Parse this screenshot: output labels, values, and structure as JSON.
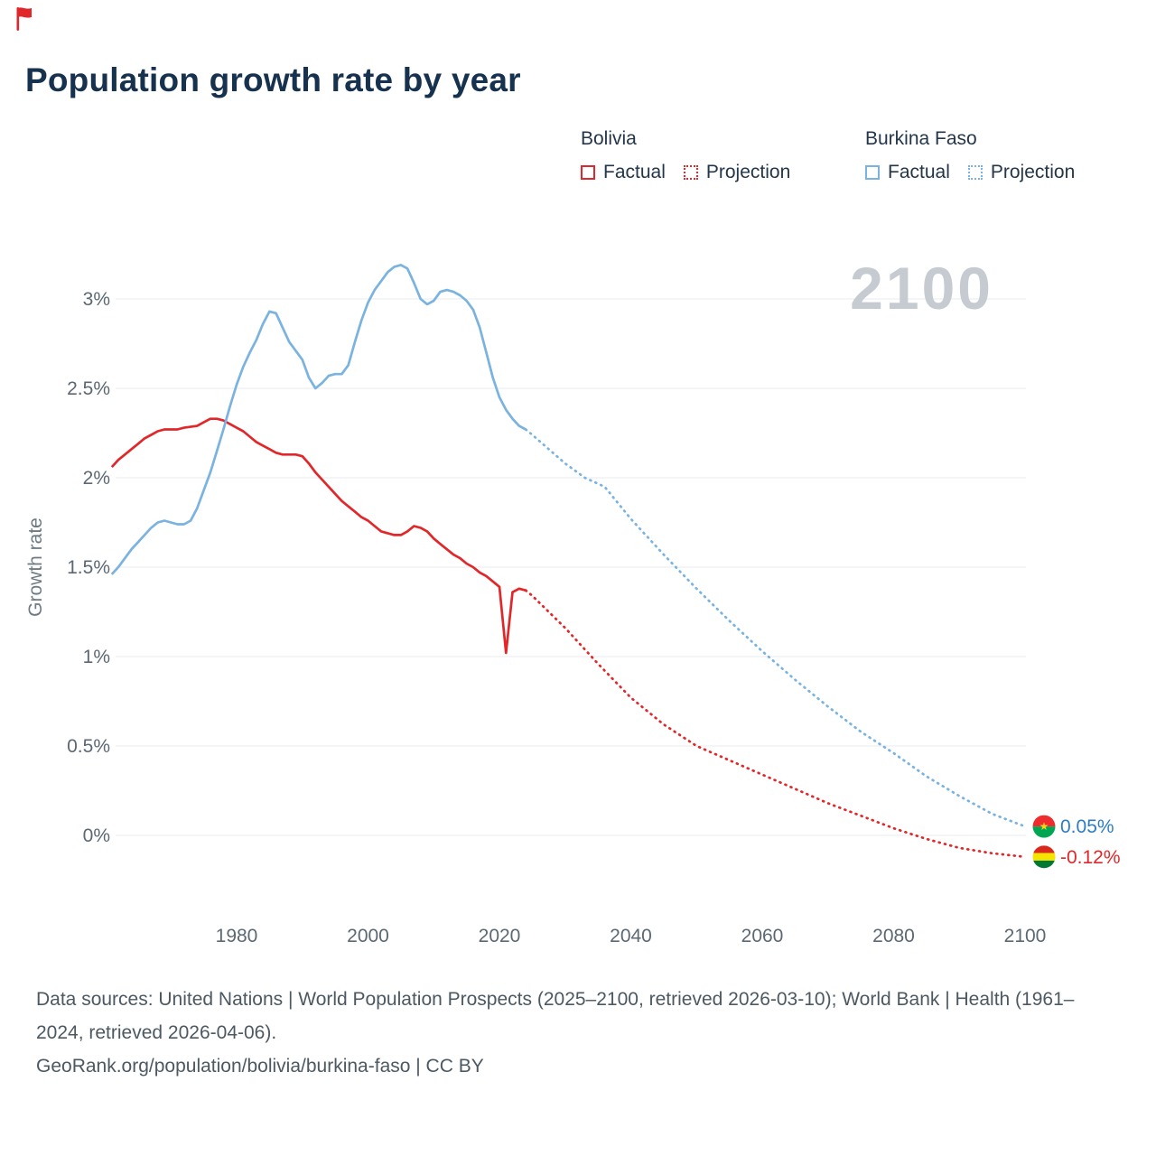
{
  "page": {
    "title": "Population growth rate by year"
  },
  "legend": {
    "groups": [
      {
        "country": "Bolivia",
        "color": "#e12729",
        "items": [
          {
            "label": "Factual",
            "style": "solid",
            "color": "#e12729"
          },
          {
            "label": "Projection",
            "style": "dotted",
            "color": "#e12729"
          }
        ]
      },
      {
        "country": "Burkina Faso",
        "color": "#7ab3e0",
        "items": [
          {
            "label": "Factual",
            "style": "solid",
            "color": "#7ab3e0"
          },
          {
            "label": "Projection",
            "style": "dotted",
            "color": "#7ab3e0"
          }
        ]
      }
    ]
  },
  "chart_data": {
    "type": "line",
    "title": "Population growth rate by year",
    "xlabel": "",
    "ylabel": "Growth rate",
    "watermark": "2100",
    "grid": true,
    "xlim": [
      1961,
      2113
    ],
    "ylim": [
      -0.25,
      3.3
    ],
    "x_ticks": [
      1980,
      2000,
      2020,
      2040,
      2060,
      2080,
      2100
    ],
    "y_ticks": [
      "0%",
      "0.5%",
      "1%",
      "1.5%",
      "2%",
      "2.5%",
      "3%"
    ],
    "y_tick_values": [
      0,
      0.5,
      1,
      1.5,
      2,
      2.5,
      3
    ],
    "series": [
      {
        "id": "bolivia-factual",
        "name": "Bolivia Factual",
        "color": "#e12729",
        "line": "solid",
        "points": [
          [
            1961,
            2.06
          ],
          [
            1962,
            2.1
          ],
          [
            1963,
            2.13
          ],
          [
            1964,
            2.16
          ],
          [
            1965,
            2.19
          ],
          [
            1966,
            2.22
          ],
          [
            1967,
            2.24
          ],
          [
            1968,
            2.26
          ],
          [
            1969,
            2.27
          ],
          [
            1970,
            2.27
          ],
          [
            1971,
            2.27
          ],
          [
            1972,
            2.28
          ],
          [
            1974,
            2.29
          ],
          [
            1975,
            2.31
          ],
          [
            1976,
            2.33
          ],
          [
            1977,
            2.33
          ],
          [
            1978,
            2.32
          ],
          [
            1979,
            2.3
          ],
          [
            1980,
            2.28
          ],
          [
            1981,
            2.26
          ],
          [
            1982,
            2.23
          ],
          [
            1983,
            2.2
          ],
          [
            1984,
            2.18
          ],
          [
            1985,
            2.16
          ],
          [
            1986,
            2.14
          ],
          [
            1987,
            2.13
          ],
          [
            1988,
            2.13
          ],
          [
            1989,
            2.13
          ],
          [
            1990,
            2.12
          ],
          [
            1991,
            2.08
          ],
          [
            1992,
            2.03
          ],
          [
            1993,
            1.99
          ],
          [
            1994,
            1.95
          ],
          [
            1995,
            1.91
          ],
          [
            1996,
            1.87
          ],
          [
            1997,
            1.84
          ],
          [
            1998,
            1.81
          ],
          [
            1999,
            1.78
          ],
          [
            2000,
            1.76
          ],
          [
            2001,
            1.73
          ],
          [
            2002,
            1.7
          ],
          [
            2003,
            1.69
          ],
          [
            2004,
            1.68
          ],
          [
            2005,
            1.68
          ],
          [
            2006,
            1.7
          ],
          [
            2007,
            1.73
          ],
          [
            2008,
            1.72
          ],
          [
            2009,
            1.7
          ],
          [
            2010,
            1.66
          ],
          [
            2011,
            1.63
          ],
          [
            2012,
            1.6
          ],
          [
            2013,
            1.57
          ],
          [
            2014,
            1.55
          ],
          [
            2015,
            1.52
          ],
          [
            2016,
            1.5
          ],
          [
            2017,
            1.47
          ],
          [
            2018,
            1.45
          ],
          [
            2019,
            1.42
          ],
          [
            2020,
            1.39
          ],
          [
            2021,
            1.02
          ],
          [
            2022,
            1.36
          ],
          [
            2023,
            1.38
          ],
          [
            2024,
            1.37
          ]
        ]
      },
      {
        "id": "bolivia-projection",
        "name": "Bolivia Projection",
        "color": "#e12729",
        "line": "dotted",
        "points": [
          [
            2024,
            1.37
          ],
          [
            2025,
            1.34
          ],
          [
            2030,
            1.16
          ],
          [
            2035,
            0.96
          ],
          [
            2040,
            0.77
          ],
          [
            2045,
            0.62
          ],
          [
            2050,
            0.5
          ],
          [
            2055,
            0.42
          ],
          [
            2060,
            0.34
          ],
          [
            2065,
            0.26
          ],
          [
            2070,
            0.18
          ],
          [
            2075,
            0.11
          ],
          [
            2080,
            0.04
          ],
          [
            2085,
            -0.02
          ],
          [
            2090,
            -0.07
          ],
          [
            2095,
            -0.1
          ],
          [
            2100,
            -0.12
          ]
        ]
      },
      {
        "id": "burkina-faso-factual",
        "name": "Burkina Faso Factual",
        "color": "#7ab3e0",
        "line": "solid",
        "points": [
          [
            1961,
            1.46
          ],
          [
            1962,
            1.5
          ],
          [
            1963,
            1.55
          ],
          [
            1964,
            1.6
          ],
          [
            1965,
            1.64
          ],
          [
            1966,
            1.68
          ],
          [
            1967,
            1.72
          ],
          [
            1968,
            1.75
          ],
          [
            1969,
            1.76
          ],
          [
            1970,
            1.75
          ],
          [
            1971,
            1.74
          ],
          [
            1972,
            1.74
          ],
          [
            1973,
            1.76
          ],
          [
            1974,
            1.83
          ],
          [
            1975,
            1.93
          ],
          [
            1976,
            2.03
          ],
          [
            1977,
            2.15
          ],
          [
            1978,
            2.27
          ],
          [
            1979,
            2.4
          ],
          [
            1980,
            2.52
          ],
          [
            1981,
            2.62
          ],
          [
            1982,
            2.7
          ],
          [
            1983,
            2.77
          ],
          [
            1984,
            2.86
          ],
          [
            1985,
            2.93
          ],
          [
            1986,
            2.92
          ],
          [
            1987,
            2.84
          ],
          [
            1988,
            2.76
          ],
          [
            1989,
            2.71
          ],
          [
            1990,
            2.66
          ],
          [
            1991,
            2.56
          ],
          [
            1992,
            2.5
          ],
          [
            1993,
            2.53
          ],
          [
            1994,
            2.57
          ],
          [
            1995,
            2.58
          ],
          [
            1996,
            2.58
          ],
          [
            1997,
            2.63
          ],
          [
            1998,
            2.76
          ],
          [
            1999,
            2.88
          ],
          [
            2000,
            2.98
          ],
          [
            2001,
            3.05
          ],
          [
            2002,
            3.1
          ],
          [
            2003,
            3.15
          ],
          [
            2004,
            3.18
          ],
          [
            2005,
            3.19
          ],
          [
            2006,
            3.17
          ],
          [
            2007,
            3.09
          ],
          [
            2008,
            3.0
          ],
          [
            2009,
            2.97
          ],
          [
            2010,
            2.99
          ],
          [
            2011,
            3.04
          ],
          [
            2012,
            3.05
          ],
          [
            2013,
            3.04
          ],
          [
            2014,
            3.02
          ],
          [
            2015,
            2.99
          ],
          [
            2016,
            2.94
          ],
          [
            2017,
            2.84
          ],
          [
            2018,
            2.7
          ],
          [
            2019,
            2.56
          ],
          [
            2020,
            2.45
          ],
          [
            2021,
            2.38
          ],
          [
            2022,
            2.33
          ],
          [
            2023,
            2.29
          ],
          [
            2024,
            2.27
          ]
        ]
      },
      {
        "id": "burkina-faso-projection",
        "name": "Burkina Faso Projection",
        "color": "#7ab3e0",
        "line": "dotted",
        "points": [
          [
            2024,
            2.27
          ],
          [
            2025,
            2.24
          ],
          [
            2030,
            2.08
          ],
          [
            2033,
            2.0
          ],
          [
            2036,
            1.95
          ],
          [
            2040,
            1.77
          ],
          [
            2045,
            1.57
          ],
          [
            2050,
            1.38
          ],
          [
            2055,
            1.2
          ],
          [
            2060,
            1.03
          ],
          [
            2065,
            0.87
          ],
          [
            2070,
            0.72
          ],
          [
            2075,
            0.58
          ],
          [
            2080,
            0.46
          ],
          [
            2085,
            0.33
          ],
          [
            2090,
            0.22
          ],
          [
            2095,
            0.12
          ],
          [
            2100,
            0.05
          ]
        ]
      }
    ],
    "end_labels": [
      {
        "id": "burkina-faso",
        "country": "Burkina Faso",
        "value": 0.05,
        "value_label": "0.05%",
        "label_color": "#2e7cc4",
        "flag": {
          "type": "burkina-faso",
          "red": "#ef2b2d",
          "green": "#00a651",
          "star": "#fcd116"
        }
      },
      {
        "id": "bolivia",
        "country": "Bolivia",
        "value": -0.12,
        "value_label": "-0.12%",
        "label_color": "#e12729",
        "flag": {
          "type": "bolivia",
          "red": "#da291c",
          "yellow": "#f4e400",
          "green": "#007a33"
        }
      }
    ]
  },
  "footer": {
    "line1": "Data sources: United Nations | World Population Prospects (2025–2100, retrieved 2026-03-10); World Bank | Health (1961–2024, retrieved 2026-04-06).",
    "line2": "GeoRank.org/population/bolivia/burkina-faso | CC BY"
  }
}
